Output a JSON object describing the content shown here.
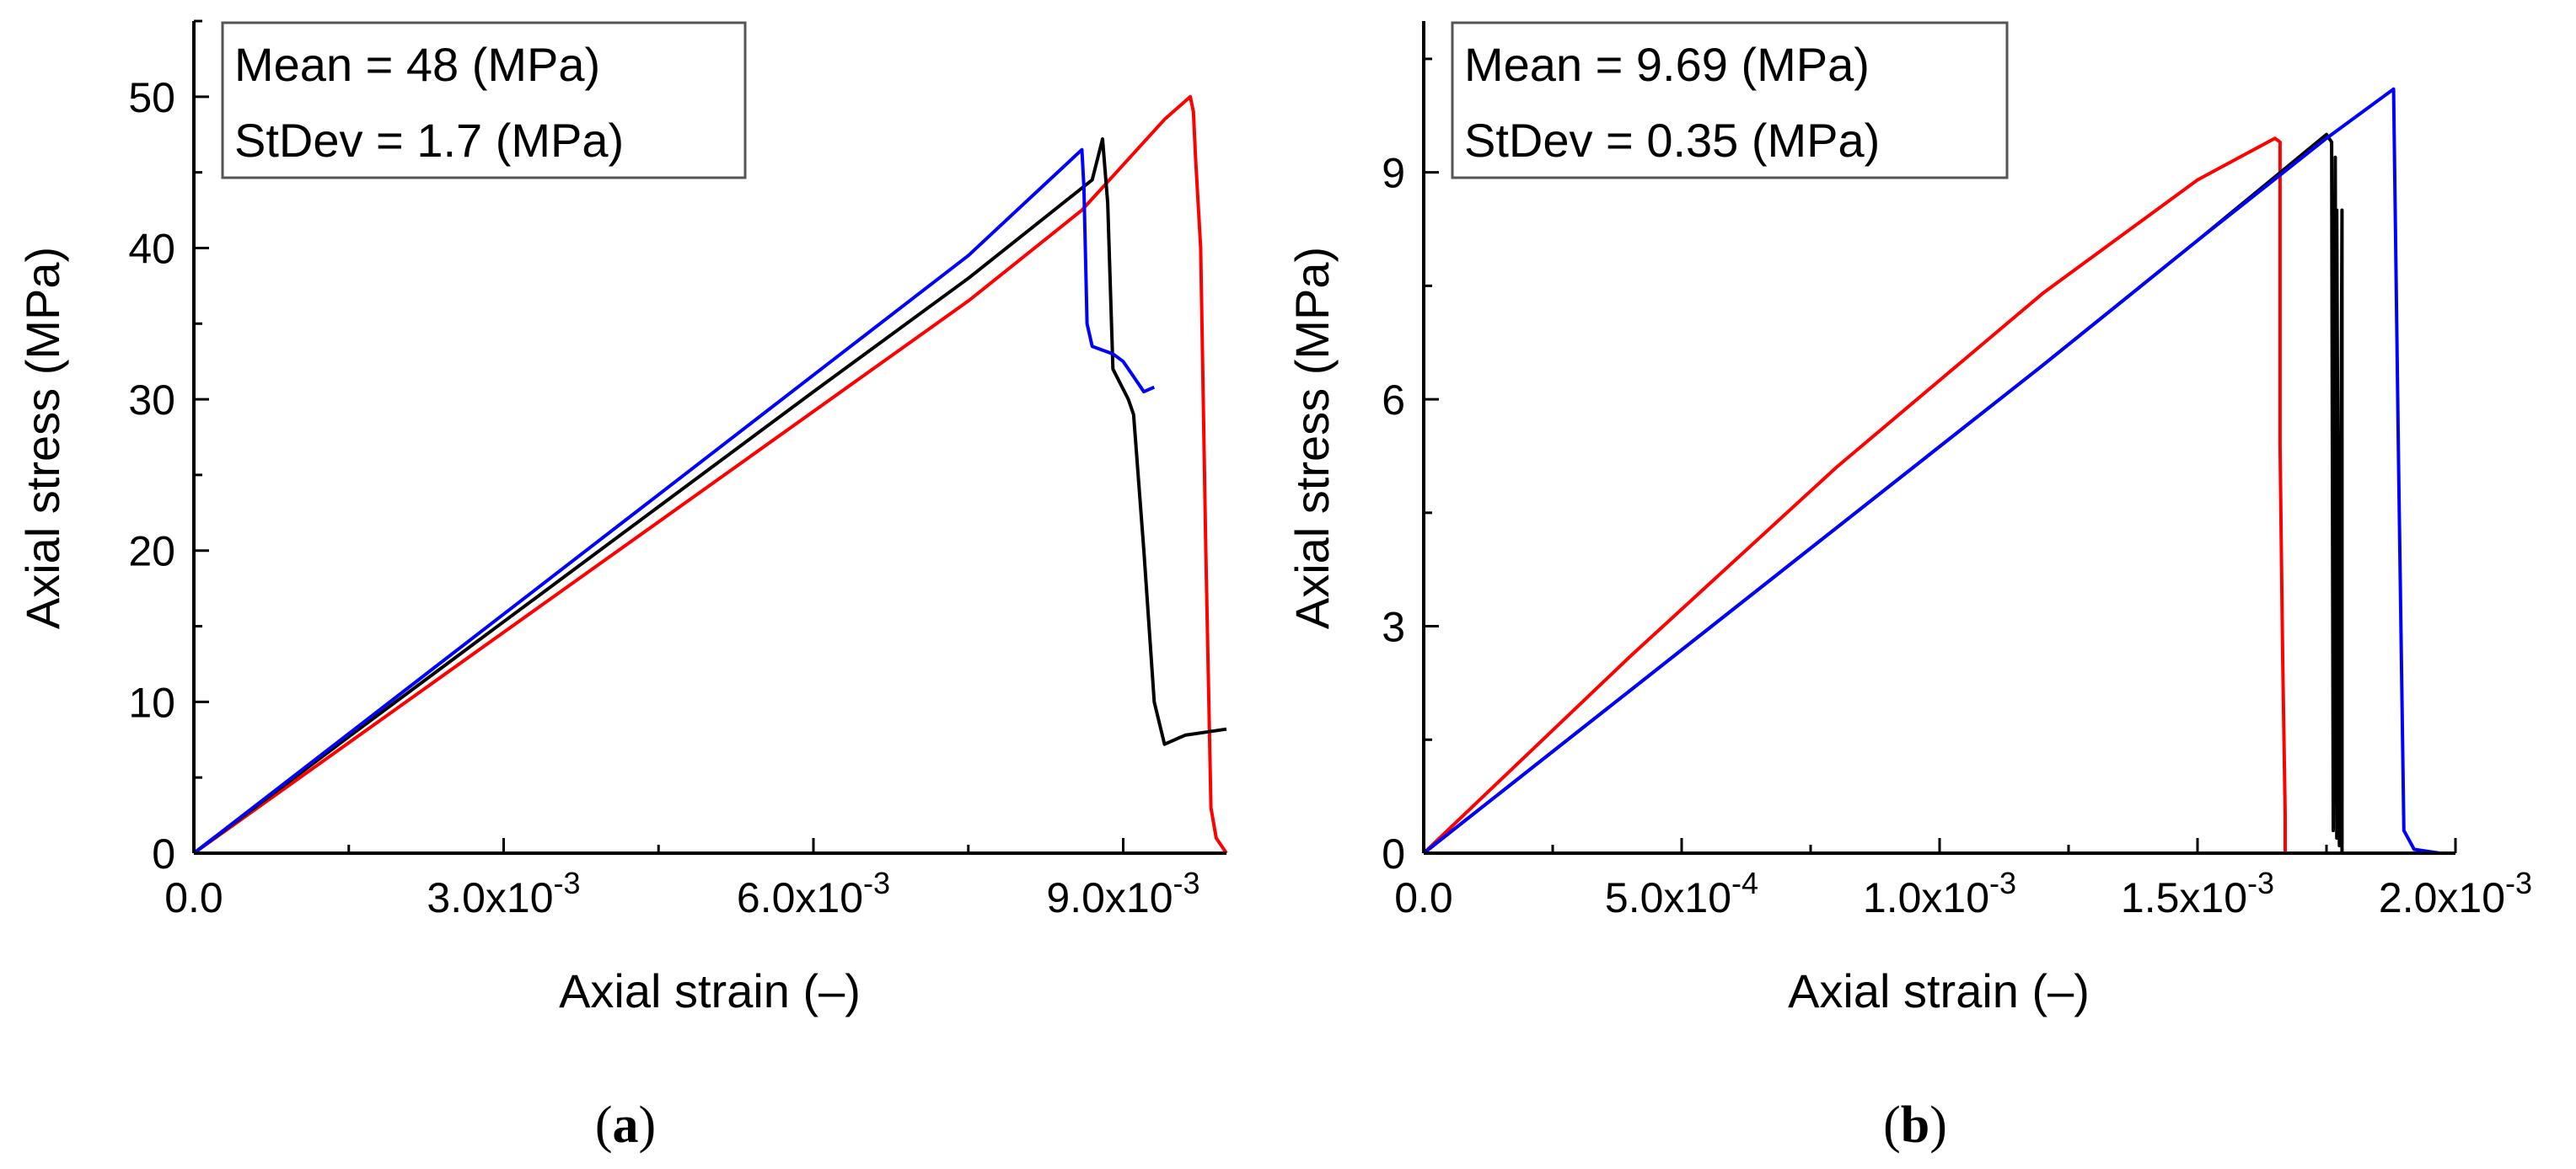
{
  "chart_data": [
    {
      "type": "line",
      "panel": "a",
      "caption_letter": "a",
      "xlabel": "Axial strain (–)",
      "ylabel": "Axial stress (MPa)",
      "xlim": [
        0,
        0.01
      ],
      "ylim": [
        0,
        55
      ],
      "xticks": [
        {
          "value": 0,
          "label": "0.0",
          "exp": ""
        },
        {
          "value": 0.003,
          "label": "3.0x10",
          "exp": "-3"
        },
        {
          "value": 0.006,
          "label": "6.0x10",
          "exp": "-3"
        },
        {
          "value": 0.009,
          "label": "9.0x10",
          "exp": "-3"
        }
      ],
      "yticks": [
        0,
        10,
        20,
        30,
        40,
        50
      ],
      "annotations": [
        "Mean = 48 (MPa)",
        "StDev = 1.7 (MPa)"
      ],
      "annotation_position": "top-left",
      "series": [
        {
          "name": "specimen-red",
          "color": "#ff0000",
          "x": [
            0,
            0.0015,
            0.003,
            0.0045,
            0.006,
            0.0075,
            0.0086,
            0.009,
            0.0094,
            0.00965,
            0.00968,
            0.0097,
            0.00975,
            0.0098,
            0.00985,
            0.0099,
            0.01
          ],
          "y": [
            0,
            7.3,
            14.6,
            21.9,
            29.2,
            36.5,
            42.5,
            45.5,
            48.5,
            50,
            49,
            46,
            40,
            20,
            3,
            1,
            0
          ]
        },
        {
          "name": "specimen-black",
          "color": "#000000",
          "x": [
            0,
            0.0015,
            0.003,
            0.0045,
            0.006,
            0.0075,
            0.0087,
            0.0088,
            0.00885,
            0.0089,
            0.00905,
            0.0091,
            0.0092,
            0.0093,
            0.0094,
            0.0096,
            0.0098,
            0.01
          ],
          "y": [
            0,
            7.7,
            15.3,
            22.9,
            30.5,
            38.0,
            44.5,
            47.2,
            43,
            32,
            30,
            29,
            20,
            10,
            7.2,
            7.8,
            8.0,
            8.2
          ]
        },
        {
          "name": "specimen-blue",
          "color": "#0000ff",
          "x": [
            0,
            0.0015,
            0.003,
            0.0045,
            0.006,
            0.0075,
            0.0086,
            0.00862,
            0.00865,
            0.0087,
            0.0089,
            0.009,
            0.0091,
            0.0092,
            0.0093
          ],
          "y": [
            0,
            7.9,
            15.8,
            23.7,
            31.6,
            39.5,
            46.5,
            44,
            35,
            33.5,
            33,
            32.5,
            31.5,
            30.5,
            30.8
          ]
        }
      ]
    },
    {
      "type": "line",
      "panel": "b",
      "caption_letter": "b",
      "xlabel": "Axial strain (–)",
      "ylabel": "Axial stress (MPa)",
      "xlim": [
        0,
        0.002
      ],
      "ylim": [
        0,
        11
      ],
      "xticks": [
        {
          "value": 0,
          "label": "0.0",
          "exp": ""
        },
        {
          "value": 0.0005,
          "label": "5.0x10",
          "exp": "-4"
        },
        {
          "value": 0.001,
          "label": "1.0x10",
          "exp": "-3"
        },
        {
          "value": 0.0015,
          "label": "1.5x10",
          "exp": "-3"
        },
        {
          "value": 0.002,
          "label": "2.0x10",
          "exp": "-3"
        }
      ],
      "yticks": [
        0,
        3,
        6,
        9
      ],
      "annotations": [
        "Mean = 9.69 (MPa)",
        "StDev = 0.35 (MPa)"
      ],
      "annotation_position": "top-left",
      "series": [
        {
          "name": "specimen-red",
          "color": "#ff0000",
          "x": [
            0,
            0.0004,
            0.0008,
            0.0012,
            0.0015,
            0.00165,
            0.00166,
            0.00166,
            0.001665,
            0.00167,
            0.00167
          ],
          "y": [
            0,
            2.6,
            5.1,
            7.4,
            8.9,
            9.45,
            9.4,
            5.4,
            2.6,
            0.5,
            0
          ]
        },
        {
          "name": "specimen-black",
          "color": "#000000",
          "x": [
            0,
            0.0004,
            0.0008,
            0.0012,
            0.0015,
            0.00175,
            0.00176,
            0.001763,
            0.001767,
            0.00177,
            0.00177,
            0.001775,
            0.00178,
            0.00178
          ],
          "y": [
            0,
            2.15,
            4.3,
            6.45,
            8.1,
            9.5,
            9.4,
            0.3,
            9.2,
            0.2,
            8.5,
            0.1,
            8.5,
            0
          ]
        },
        {
          "name": "specimen-blue",
          "color": "#0000ff",
          "x": [
            0,
            0.0004,
            0.0008,
            0.0012,
            0.0015,
            0.00175,
            0.00188,
            0.00189,
            0.0019,
            0.00192,
            0.00197
          ],
          "y": [
            0,
            2.15,
            4.3,
            6.45,
            8.1,
            9.45,
            10.1,
            5.0,
            0.3,
            0.05,
            0.0
          ]
        }
      ]
    }
  ]
}
